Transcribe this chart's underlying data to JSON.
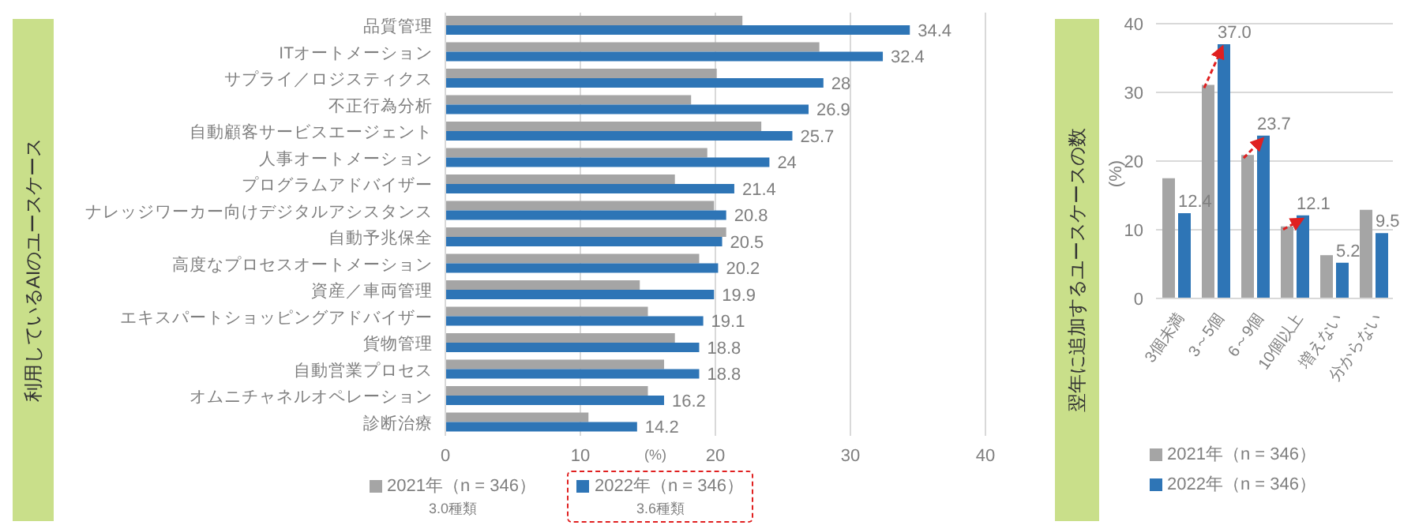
{
  "chart_data": [
    {
      "type": "bar",
      "orientation": "horizontal",
      "title": "利用しているAIのユースケース",
      "xlabel": "(%)",
      "categories": [
        "品質管理",
        "ITオートメーション",
        "サプライ／ロジスティクス",
        "不正行為分析",
        "自動顧客サービスエージェント",
        "人事オートメーション",
        "プログラムアドバイザー",
        "ナレッジワーカー向けデジタルアシスタンス",
        "自動予兆保全",
        "高度なプロセスオートメーション",
        "資産／車両管理",
        "エキスパートショッピングアドバイザー",
        "貨物管理",
        "自動営業プロセス",
        "オムニチャネルオペレーション",
        "診断治療"
      ],
      "series": [
        {
          "name": "2021年（n = 346）",
          "color": "#a5a5a5",
          "values": [
            22.0,
            27.7,
            20.1,
            18.2,
            23.4,
            19.4,
            17.0,
            19.9,
            20.8,
            18.8,
            14.4,
            15.0,
            17.0,
            16.2,
            15.0,
            10.6
          ]
        },
        {
          "name": "2022年（n = 346）",
          "color": "#2e75b6",
          "values": [
            34.4,
            32.4,
            28,
            26.9,
            25.7,
            24,
            21.4,
            20.8,
            20.5,
            20.2,
            19.9,
            19.1,
            18.8,
            18.8,
            16.2,
            14.2
          ],
          "value_labels": [
            "34.4",
            "32.4",
            "28",
            "26.9",
            "25.7",
            "24",
            "21.4",
            "20.8",
            "20.5",
            "20.2",
            "19.9",
            "19.1",
            "18.8",
            "18.8",
            "16.2",
            "14.2"
          ]
        }
      ],
      "xlim": [
        0,
        40
      ],
      "xticks": [
        0,
        10,
        20,
        30,
        40
      ],
      "grid": "x",
      "legend": "bottom",
      "annotations": [
        "3.0種類",
        "3.6種類"
      ]
    },
    {
      "type": "bar",
      "title": "翌年に追加するユースケースの数",
      "ylabel": "(%)",
      "categories": [
        "3個未満",
        "3～5個",
        "6～9個",
        "10個以上",
        "増えない",
        "分からない"
      ],
      "series": [
        {
          "name": "2021年（n = 346）",
          "color": "#a5a5a5",
          "values": [
            17.5,
            31.1,
            20.9,
            10.5,
            6.3,
            12.9
          ]
        },
        {
          "name": "2022年（n = 346）",
          "color": "#2e75b6",
          "values": [
            12.4,
            37.0,
            23.7,
            12.1,
            5.2,
            9.5
          ],
          "value_labels": [
            "12.4",
            "37.0",
            "23.7",
            "12.1",
            "5.2",
            "9.5"
          ]
        }
      ],
      "ylim": [
        0,
        40
      ],
      "yticks": [
        0,
        10,
        20,
        30,
        40
      ],
      "grid": "y",
      "legend": "bottom"
    }
  ]
}
